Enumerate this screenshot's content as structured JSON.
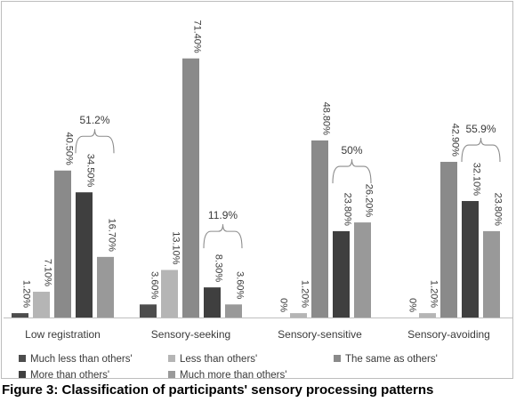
{
  "caption": "Figure 3: Classification of participants' sensory processing patterns",
  "chart_data": {
    "type": "bar",
    "categories": [
      "Low registration",
      "Sensory-seeking",
      "Sensory-sensitive",
      "Sensory-avoiding"
    ],
    "ylim": [
      0,
      75
    ],
    "grid": false,
    "legend_position": "bottom",
    "series": [
      {
        "name": "Much less than others'",
        "color": "#4d4d4d",
        "values": [
          1.2,
          3.6,
          0,
          0
        ],
        "labels": [
          "1.20%",
          "3.60%",
          "0%",
          "0%"
        ]
      },
      {
        "name": "Less than others'",
        "color": "#b5b5b5",
        "values": [
          7.1,
          13.1,
          1.2,
          1.2
        ],
        "labels": [
          "7.10%",
          "13.10%",
          "1.20%",
          "1.20%"
        ]
      },
      {
        "name": "The same as others'",
        "color": "#8a8a8a",
        "values": [
          40.5,
          71.4,
          48.8,
          42.9
        ],
        "labels": [
          "40.50%",
          "71.40%",
          "48.80%",
          "42.90%"
        ]
      },
      {
        "name": "More than others'",
        "color": "#3f3f3f",
        "values": [
          34.5,
          8.3,
          23.8,
          32.1
        ],
        "labels": [
          "34.50%",
          "8.30%",
          "23.80%",
          "32.10%"
        ]
      },
      {
        "name": "Much more than others'",
        "color": "#999999",
        "values": [
          16.7,
          3.6,
          26.2,
          23.8
        ],
        "labels": [
          "16.70%",
          "3.60%",
          "26.20%",
          "23.80%"
        ]
      }
    ],
    "annotations": [
      {
        "category": "Low registration",
        "text": "51.2%"
      },
      {
        "category": "Sensory-seeking",
        "text": "11.9%"
      },
      {
        "category": "Sensory-sensitive",
        "text": "50%"
      },
      {
        "category": "Sensory-avoiding",
        "text": "55.9%"
      }
    ]
  }
}
